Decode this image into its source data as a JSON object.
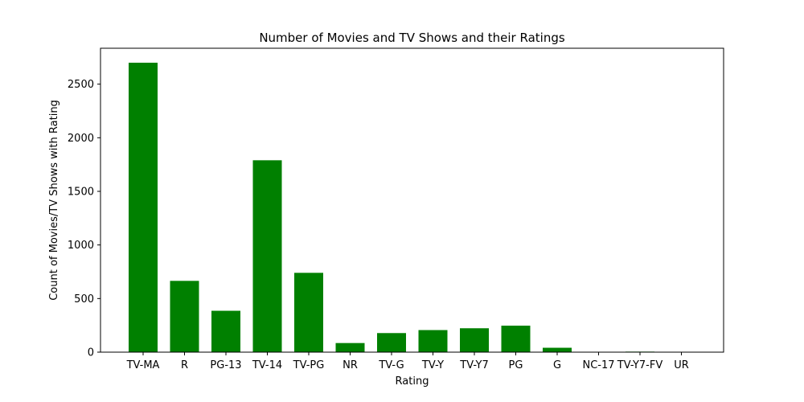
{
  "chart_data": {
    "type": "bar",
    "title": "Number of Movies and TV Shows and their Ratings",
    "xlabel": "Rating",
    "ylabel": "Count of Movies/TV Shows with Rating",
    "categories": [
      "TV-MA",
      "R",
      "PG-13",
      "TV-14",
      "TV-PG",
      "NR",
      "TV-G",
      "TV-Y",
      "TV-Y7",
      "PG",
      "G",
      "NC-17",
      "TV-Y7-FV",
      "UR"
    ],
    "values": [
      2700,
      665,
      386,
      1790,
      740,
      85,
      178,
      206,
      223,
      247,
      41,
      3,
      5,
      3
    ],
    "ylim": [
      0,
      2835
    ],
    "yticks": [
      0,
      500,
      1000,
      1500,
      2000,
      2500
    ],
    "bar_color": "#008000",
    "grid": false
  }
}
